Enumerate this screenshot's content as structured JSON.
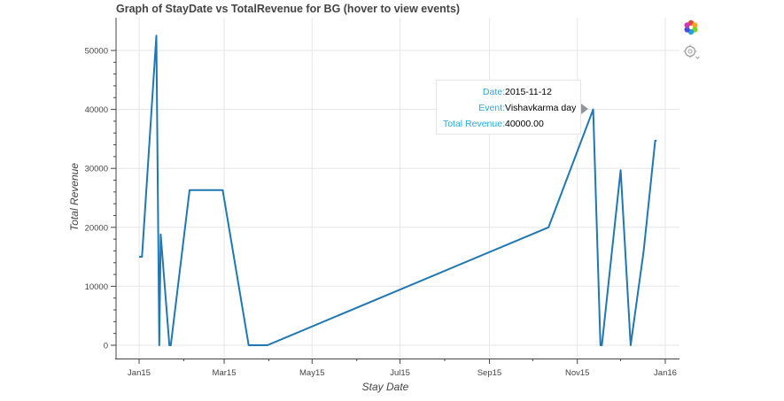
{
  "title": "Graph of StayDate vs TotalRevenue for BG (hover to view events)",
  "chart_data": {
    "type": "line",
    "xlabel": "Stay Date",
    "ylabel": "Total Revenue",
    "x_ticks": [
      "Jan15",
      "Mar15",
      "May15",
      "Jul15",
      "Sep15",
      "Nov15",
      "Jan16"
    ],
    "y_ticks": [
      0,
      10000,
      20000,
      30000,
      40000,
      50000
    ],
    "grid": true,
    "series": [
      {
        "color": "#1f77b4",
        "x": [
          "2015-01-01",
          "2015-01-03",
          "2015-01-13",
          "2015-01-15",
          "2015-01-16",
          "2015-01-22",
          "2015-01-23",
          "2015-02-05",
          "2015-02-28",
          "2015-03-18",
          "2015-03-31",
          "2015-10-12",
          "2015-11-12",
          "2015-11-17",
          "2015-11-18",
          "2015-12-01",
          "2015-12-08",
          "2015-12-17",
          "2015-12-25",
          "2015-12-26"
        ],
        "values": [
          15000,
          15000,
          52500,
          0,
          18800,
          0,
          0,
          26300,
          26300,
          0,
          0,
          20000,
          40000,
          0,
          0,
          29700,
          0,
          16000,
          34700,
          34700
        ]
      }
    ]
  },
  "tooltip": {
    "rows": [
      {
        "key": "Date:",
        "value": "2015-11-12"
      },
      {
        "key": "Event:",
        "value": "Vishavkarma day"
      },
      {
        "key": "Total Revenue:",
        "value": "40000.00"
      }
    ]
  },
  "toolbar": {
    "tools": [
      "bokeh-logo-icon",
      "hover-tool-icon"
    ]
  }
}
